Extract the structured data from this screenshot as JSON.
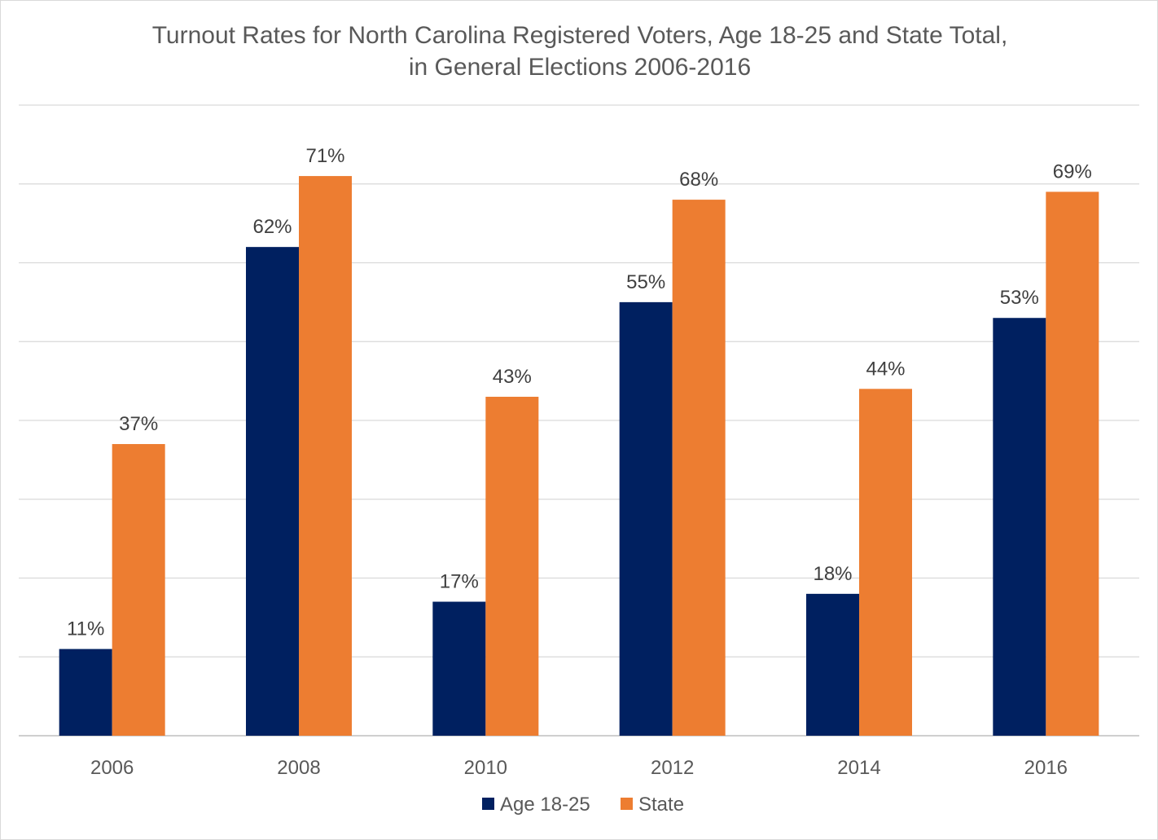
{
  "chart_data": {
    "type": "bar",
    "title_lines": [
      "Turnout Rates for North Carolina Registered Voters, Age 18-25 and State Total,",
      "in General Elections 2006-2016"
    ],
    "categories": [
      "2006",
      "2008",
      "2010",
      "2012",
      "2014",
      "2016"
    ],
    "series": [
      {
        "name": "Age 18-25",
        "color": "#002060",
        "values": [
          11,
          62,
          17,
          55,
          18,
          53
        ],
        "labels": [
          "11%",
          "62%",
          "17%",
          "55%",
          "18%",
          "53%"
        ]
      },
      {
        "name": "State",
        "color": "#ED7D31",
        "values": [
          37,
          71,
          43,
          68,
          44,
          69
        ],
        "labels": [
          "37%",
          "71%",
          "43%",
          "68%",
          "44%",
          "69%"
        ]
      }
    ],
    "ylim": [
      0,
      80
    ],
    "y_gridline_step": 10,
    "grid": true,
    "y_axis_labels_shown": false,
    "legend_position": "bottom",
    "xlabel": "",
    "ylabel": ""
  }
}
